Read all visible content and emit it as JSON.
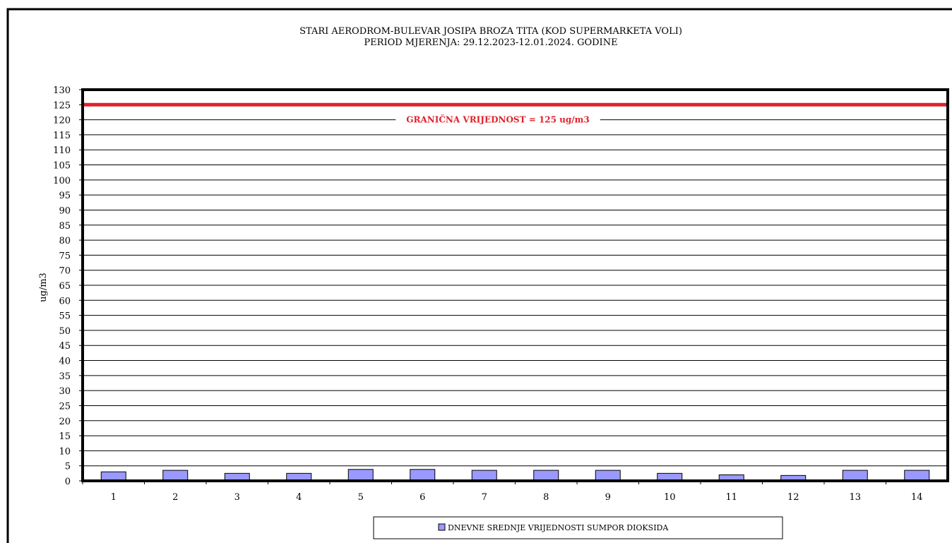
{
  "chart_data": {
    "type": "bar",
    "title": "STARI AERODROM-BULEVAR  JOSIPA BROZA TITA (KOD SUPERMARKETA  VOLI)",
    "subtitle": "PERIOD MJERENJA:  29.12.2023-12.01.2024.  GODINE",
    "xlabel": "",
    "ylabel": "ug/m3",
    "ylim": [
      0,
      130
    ],
    "ytick_step": 5,
    "yticks": [
      "0",
      "5",
      "10",
      "15",
      "20",
      "25",
      "30",
      "35",
      "40",
      "45",
      "50",
      "55",
      "60",
      "65",
      "70",
      "75",
      "80",
      "85",
      "90",
      "95",
      "100",
      "105",
      "110",
      "115",
      "120",
      "125",
      "130"
    ],
    "categories": [
      "1",
      "2",
      "3",
      "4",
      "5",
      "6",
      "7",
      "8",
      "9",
      "10",
      "11",
      "12",
      "13",
      "14"
    ],
    "series": [
      {
        "name": "DNEVNE SREDNJE VRIJEDNOSTI SUMPOR DIOKSIDA",
        "color": "#9999ff",
        "values": [
          3.0,
          3.5,
          2.5,
          2.5,
          3.8,
          3.8,
          3.5,
          3.5,
          3.5,
          2.5,
          2.0,
          1.8,
          3.5,
          3.5
        ]
      }
    ],
    "limit": {
      "value": 125,
      "label": "GRANIČNA VRIJEDNOST = 125 ug/m3",
      "color": "#e0202a"
    },
    "grid": true,
    "legend_position": "bottom-center"
  }
}
